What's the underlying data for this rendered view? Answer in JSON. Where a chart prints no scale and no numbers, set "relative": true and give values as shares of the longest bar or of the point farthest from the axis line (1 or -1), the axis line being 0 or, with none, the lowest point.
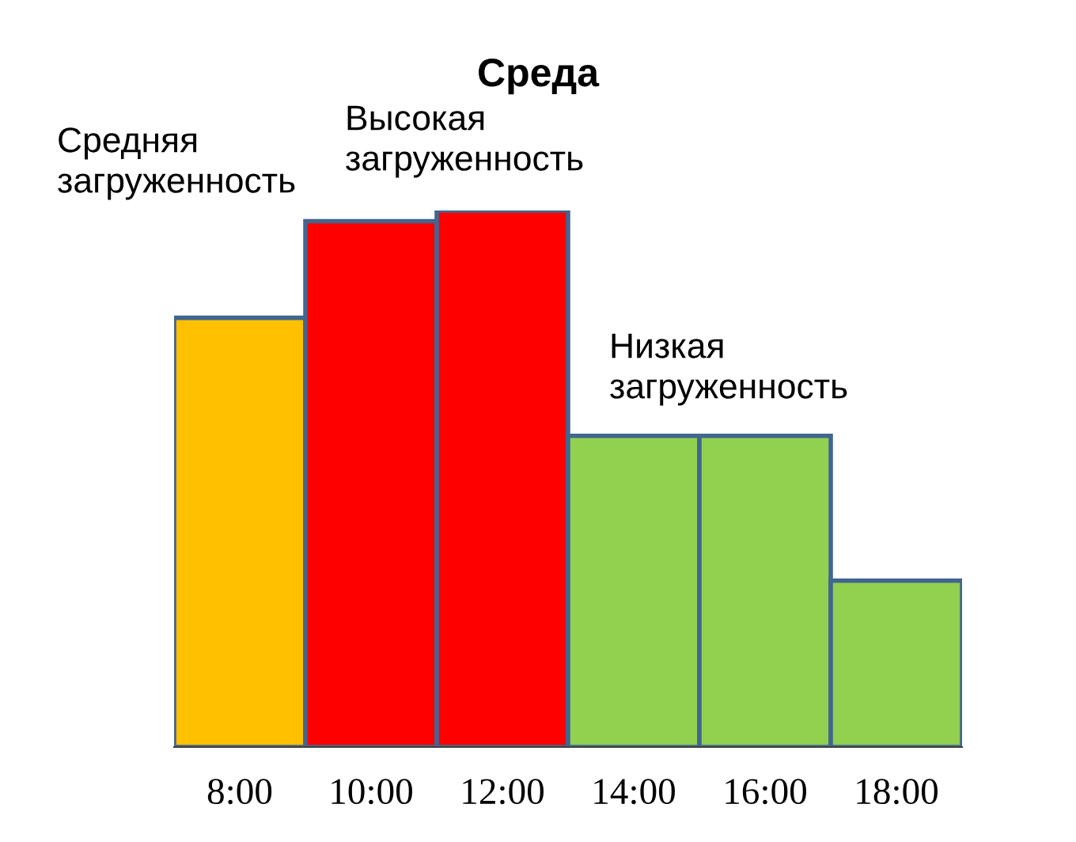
{
  "chart_data": {
    "type": "bar",
    "title": "Среда",
    "relative": true,
    "categories": [
      "8:00",
      "10:00",
      "12:00",
      "14:00",
      "16:00",
      "18:00"
    ],
    "values": [
      0.8,
      0.98,
      1.0,
      0.58,
      0.58,
      0.31
    ],
    "colors": [
      "#ffc000",
      "#ff0000",
      "#ff0000",
      "#92d050",
      "#92d050",
      "#92d050"
    ],
    "annotations": [
      "Средняя\nзагруженность",
      "Высокая\nзагруженность",
      "Низкая\nзагруженность"
    ],
    "grid": false,
    "legend": false
  }
}
